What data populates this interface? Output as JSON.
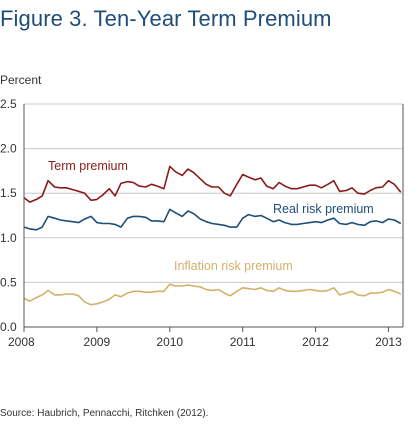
{
  "figure": {
    "title": "Figure 3. Ten-Year Term Premium",
    "source": "Source: Haubrich, Pennacchi, Ritchken (2012)."
  },
  "chart_data": {
    "type": "line",
    "title": "Figure 3. Ten-Year Term Premium",
    "ylabel": "Percent",
    "xlabel": "",
    "ylim": [
      0.0,
      2.5
    ],
    "yticks": [
      "0.0",
      "0.5",
      "1.0",
      "1.5",
      "2.0",
      "2.5"
    ],
    "xlim": [
      2008.0,
      2013.2
    ],
    "xticks": [
      "2008",
      "2009",
      "2010",
      "2011",
      "2012",
      "2013"
    ],
    "grid": "horizontal",
    "legend": "inline labels",
    "series": [
      {
        "name": "Term premium",
        "color": "#8b1a1a",
        "x": [
          2008.0,
          2008.08,
          2008.17,
          2008.25,
          2008.33,
          2008.42,
          2008.5,
          2008.58,
          2008.67,
          2008.75,
          2008.83,
          2008.92,
          2009.0,
          2009.08,
          2009.17,
          2009.25,
          2009.33,
          2009.42,
          2009.5,
          2009.58,
          2009.67,
          2009.75,
          2009.83,
          2009.92,
          2010.0,
          2010.08,
          2010.17,
          2010.25,
          2010.33,
          2010.42,
          2010.5,
          2010.58,
          2010.67,
          2010.75,
          2010.83,
          2010.92,
          2011.0,
          2011.08,
          2011.17,
          2011.25,
          2011.33,
          2011.42,
          2011.5,
          2011.58,
          2011.67,
          2011.75,
          2011.83,
          2011.92,
          2012.0,
          2012.08,
          2012.17,
          2012.25,
          2012.33,
          2012.42,
          2012.5,
          2012.58,
          2012.67,
          2012.75,
          2012.83,
          2012.92,
          2013.0,
          2013.08,
          2013.17
        ],
        "y": [
          1.45,
          1.4,
          1.43,
          1.47,
          1.64,
          1.57,
          1.56,
          1.56,
          1.54,
          1.52,
          1.5,
          1.42,
          1.43,
          1.48,
          1.55,
          1.47,
          1.61,
          1.63,
          1.62,
          1.58,
          1.57,
          1.6,
          1.58,
          1.55,
          1.8,
          1.74,
          1.7,
          1.77,
          1.73,
          1.66,
          1.6,
          1.57,
          1.57,
          1.5,
          1.47,
          1.6,
          1.71,
          1.68,
          1.65,
          1.67,
          1.58,
          1.55,
          1.62,
          1.58,
          1.55,
          1.55,
          1.57,
          1.59,
          1.59,
          1.56,
          1.6,
          1.64,
          1.52,
          1.53,
          1.56,
          1.5,
          1.49,
          1.53,
          1.56,
          1.57,
          1.64,
          1.6,
          1.51
        ]
      },
      {
        "name": "Real risk premium",
        "color": "#1f4e79",
        "x": [
          2008.0,
          2008.08,
          2008.17,
          2008.25,
          2008.33,
          2008.42,
          2008.5,
          2008.58,
          2008.67,
          2008.75,
          2008.83,
          2008.92,
          2009.0,
          2009.08,
          2009.17,
          2009.25,
          2009.33,
          2009.42,
          2009.5,
          2009.58,
          2009.67,
          2009.75,
          2009.83,
          2009.92,
          2010.0,
          2010.08,
          2010.17,
          2010.25,
          2010.33,
          2010.42,
          2010.5,
          2010.58,
          2010.67,
          2010.75,
          2010.83,
          2010.92,
          2011.0,
          2011.08,
          2011.17,
          2011.25,
          2011.33,
          2011.42,
          2011.5,
          2011.58,
          2011.67,
          2011.75,
          2011.83,
          2011.92,
          2012.0,
          2012.08,
          2012.17,
          2012.25,
          2012.33,
          2012.42,
          2012.5,
          2012.58,
          2012.67,
          2012.75,
          2012.83,
          2012.92,
          2013.0,
          2013.08,
          2013.17
        ],
        "y": [
          1.12,
          1.1,
          1.09,
          1.12,
          1.24,
          1.22,
          1.2,
          1.19,
          1.18,
          1.17,
          1.21,
          1.24,
          1.17,
          1.16,
          1.16,
          1.15,
          1.12,
          1.22,
          1.24,
          1.24,
          1.23,
          1.19,
          1.19,
          1.18,
          1.32,
          1.28,
          1.24,
          1.3,
          1.27,
          1.21,
          1.18,
          1.16,
          1.15,
          1.14,
          1.12,
          1.12,
          1.22,
          1.26,
          1.24,
          1.25,
          1.22,
          1.18,
          1.2,
          1.17,
          1.15,
          1.15,
          1.16,
          1.17,
          1.18,
          1.17,
          1.2,
          1.22,
          1.16,
          1.15,
          1.17,
          1.15,
          1.14,
          1.18,
          1.19,
          1.17,
          1.21,
          1.2,
          1.16
        ]
      },
      {
        "name": "Inflation risk premium",
        "color": "#d4b06a",
        "x": [
          2008.0,
          2008.08,
          2008.17,
          2008.25,
          2008.33,
          2008.42,
          2008.5,
          2008.58,
          2008.67,
          2008.75,
          2008.83,
          2008.92,
          2009.0,
          2009.08,
          2009.17,
          2009.25,
          2009.33,
          2009.42,
          2009.5,
          2009.58,
          2009.67,
          2009.75,
          2009.83,
          2009.92,
          2010.0,
          2010.08,
          2010.17,
          2010.25,
          2010.33,
          2010.42,
          2010.5,
          2010.58,
          2010.67,
          2010.75,
          2010.83,
          2010.92,
          2011.0,
          2011.08,
          2011.17,
          2011.25,
          2011.33,
          2011.42,
          2011.5,
          2011.58,
          2011.67,
          2011.75,
          2011.83,
          2011.92,
          2012.0,
          2012.08,
          2012.17,
          2012.25,
          2012.33,
          2012.42,
          2012.5,
          2012.58,
          2012.67,
          2012.75,
          2012.83,
          2012.92,
          2013.0,
          2013.08,
          2013.17
        ],
        "y": [
          0.32,
          0.29,
          0.33,
          0.36,
          0.41,
          0.36,
          0.36,
          0.37,
          0.37,
          0.35,
          0.28,
          0.25,
          0.26,
          0.28,
          0.31,
          0.36,
          0.34,
          0.38,
          0.4,
          0.4,
          0.39,
          0.39,
          0.4,
          0.4,
          0.48,
          0.46,
          0.46,
          0.47,
          0.46,
          0.45,
          0.42,
          0.41,
          0.42,
          0.38,
          0.35,
          0.4,
          0.44,
          0.43,
          0.42,
          0.44,
          0.41,
          0.4,
          0.44,
          0.41,
          0.4,
          0.4,
          0.41,
          0.42,
          0.41,
          0.4,
          0.41,
          0.44,
          0.36,
          0.38,
          0.4,
          0.36,
          0.35,
          0.38,
          0.38,
          0.39,
          0.42,
          0.4,
          0.37
        ]
      }
    ]
  }
}
